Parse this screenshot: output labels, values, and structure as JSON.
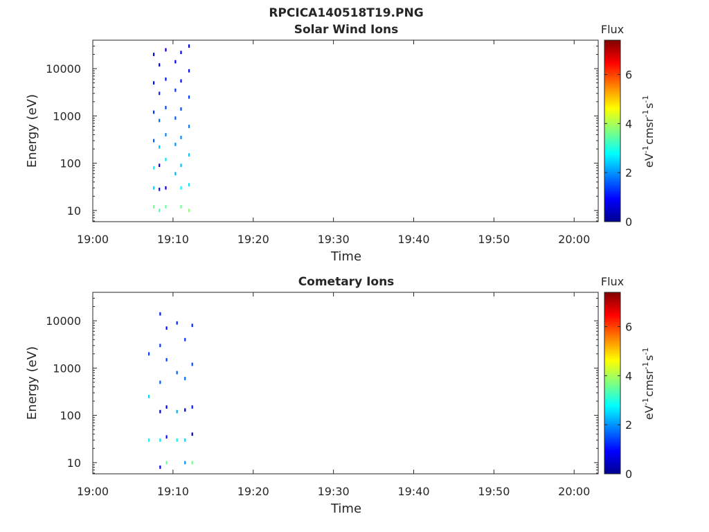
{
  "figure_title": "RPCICA140518T19.PNG",
  "chart_data": [
    {
      "type": "heatmap",
      "title": "Solar Wind Ions",
      "xlabel": "Time",
      "ylabel": "Energy (eV)",
      "x_ticks": [
        "19:00",
        "19:10",
        "19:20",
        "19:30",
        "19:40",
        "19:50",
        "20:00"
      ],
      "xlim_minutes": [
        0,
        63
      ],
      "y_ticks": [
        10,
        100,
        1000,
        10000
      ],
      "y_scale": "log",
      "ylim": [
        5.8,
        40000
      ],
      "colorbar": {
        "title": "Flux",
        "label": "eV-1cm-2sr-1s-1",
        "ticks": [
          0,
          2,
          4,
          6
        ],
        "range": [
          0,
          7.4
        ],
        "colormap": "jet"
      },
      "data_extent_minutes": [
        6.6,
        12.7
      ],
      "columns": [
        {
          "t": 7.6,
          "cells": [
            [
              12,
              3.6
            ],
            [
              30,
              2.5
            ],
            [
              80,
              2.8
            ],
            [
              300,
              1.6
            ],
            [
              1200,
              1.3
            ],
            [
              5000,
              1.0
            ],
            [
              20000,
              0.6
            ]
          ]
        },
        {
          "t": 8.3,
          "cells": [
            [
              10,
              3.4
            ],
            [
              28,
              1.1
            ],
            [
              90,
              0.7
            ],
            [
              220,
              2.4
            ],
            [
              800,
              1.7
            ],
            [
              3000,
              1.2
            ],
            [
              12000,
              0.8
            ]
          ]
        },
        {
          "t": 9.1,
          "cells": [
            [
              12,
              3.5
            ],
            [
              30,
              0.8
            ],
            [
              120,
              2.6
            ],
            [
              400,
              1.9
            ],
            [
              1500,
              1.4
            ],
            [
              6000,
              1.1
            ],
            [
              25000,
              0.7
            ]
          ]
        },
        {
          "t": 10.3,
          "cells": [
            [
              60,
              2.2
            ],
            [
              250,
              2.0
            ],
            [
              900,
              1.6
            ],
            [
              3500,
              1.3
            ],
            [
              14000,
              0.9
            ]
          ]
        },
        {
          "t": 11.0,
          "cells": [
            [
              12,
              3.6
            ],
            [
              30,
              2.8
            ],
            [
              90,
              2.3
            ],
            [
              350,
              1.9
            ],
            [
              1400,
              1.5
            ],
            [
              5500,
              1.0
            ],
            [
              22000,
              0.7
            ]
          ]
        },
        {
          "t": 12.0,
          "cells": [
            [
              10,
              3.8
            ],
            [
              35,
              2.6
            ],
            [
              150,
              2.4
            ],
            [
              600,
              1.8
            ],
            [
              2500,
              1.4
            ],
            [
              9000,
              1.0
            ],
            [
              30000,
              0.6
            ]
          ]
        }
      ]
    },
    {
      "type": "heatmap",
      "title": "Cometary Ions",
      "xlabel": "Time",
      "ylabel": "Energy (eV)",
      "x_ticks": [
        "19:00",
        "19:10",
        "19:20",
        "19:30",
        "19:40",
        "19:50",
        "20:00"
      ],
      "xlim_minutes": [
        0,
        63
      ],
      "y_ticks": [
        10,
        100,
        1000,
        10000
      ],
      "y_scale": "log",
      "ylim": [
        5.8,
        40000
      ],
      "colorbar": {
        "title": "Flux",
        "label": "eV-1cm-2sr-1s-1",
        "ticks": [
          0,
          2,
          4,
          6
        ],
        "range": [
          0,
          7.4
        ],
        "colormap": "jet"
      },
      "data_extent_minutes": [
        6.5,
        12.7
      ],
      "columns": [
        {
          "t": 7.0,
          "cells": [
            [
              30,
              2.7
            ],
            [
              250,
              2.5
            ],
            [
              2000,
              1.4
            ]
          ]
        },
        {
          "t": 8.4,
          "cells": [
            [
              8,
              0.9
            ],
            [
              30,
              2.6
            ],
            [
              120,
              0.5
            ],
            [
              500,
              1.6
            ],
            [
              3000,
              1.3
            ],
            [
              14000,
              1.1
            ]
          ]
        },
        {
          "t": 9.2,
          "cells": [
            [
              10,
              3.5
            ],
            [
              35,
              1.0
            ],
            [
              150,
              0.6
            ],
            [
              1500,
              1.4
            ],
            [
              7000,
              1.0
            ]
          ]
        },
        {
          "t": 10.5,
          "cells": [
            [
              30,
              2.7
            ],
            [
              120,
              2.2
            ],
            [
              800,
              1.6
            ],
            [
              9000,
              1.2
            ]
          ]
        },
        {
          "t": 11.5,
          "cells": [
            [
              10,
              2.0
            ],
            [
              30,
              2.5
            ],
            [
              130,
              0.4
            ],
            [
              600,
              1.7
            ],
            [
              4000,
              1.3
            ]
          ]
        },
        {
          "t": 12.4,
          "cells": [
            [
              10,
              3.6
            ],
            [
              40,
              0.3
            ],
            [
              150,
              1.1
            ],
            [
              1200,
              1.5
            ],
            [
              8000,
              1.2
            ]
          ]
        }
      ]
    }
  ]
}
